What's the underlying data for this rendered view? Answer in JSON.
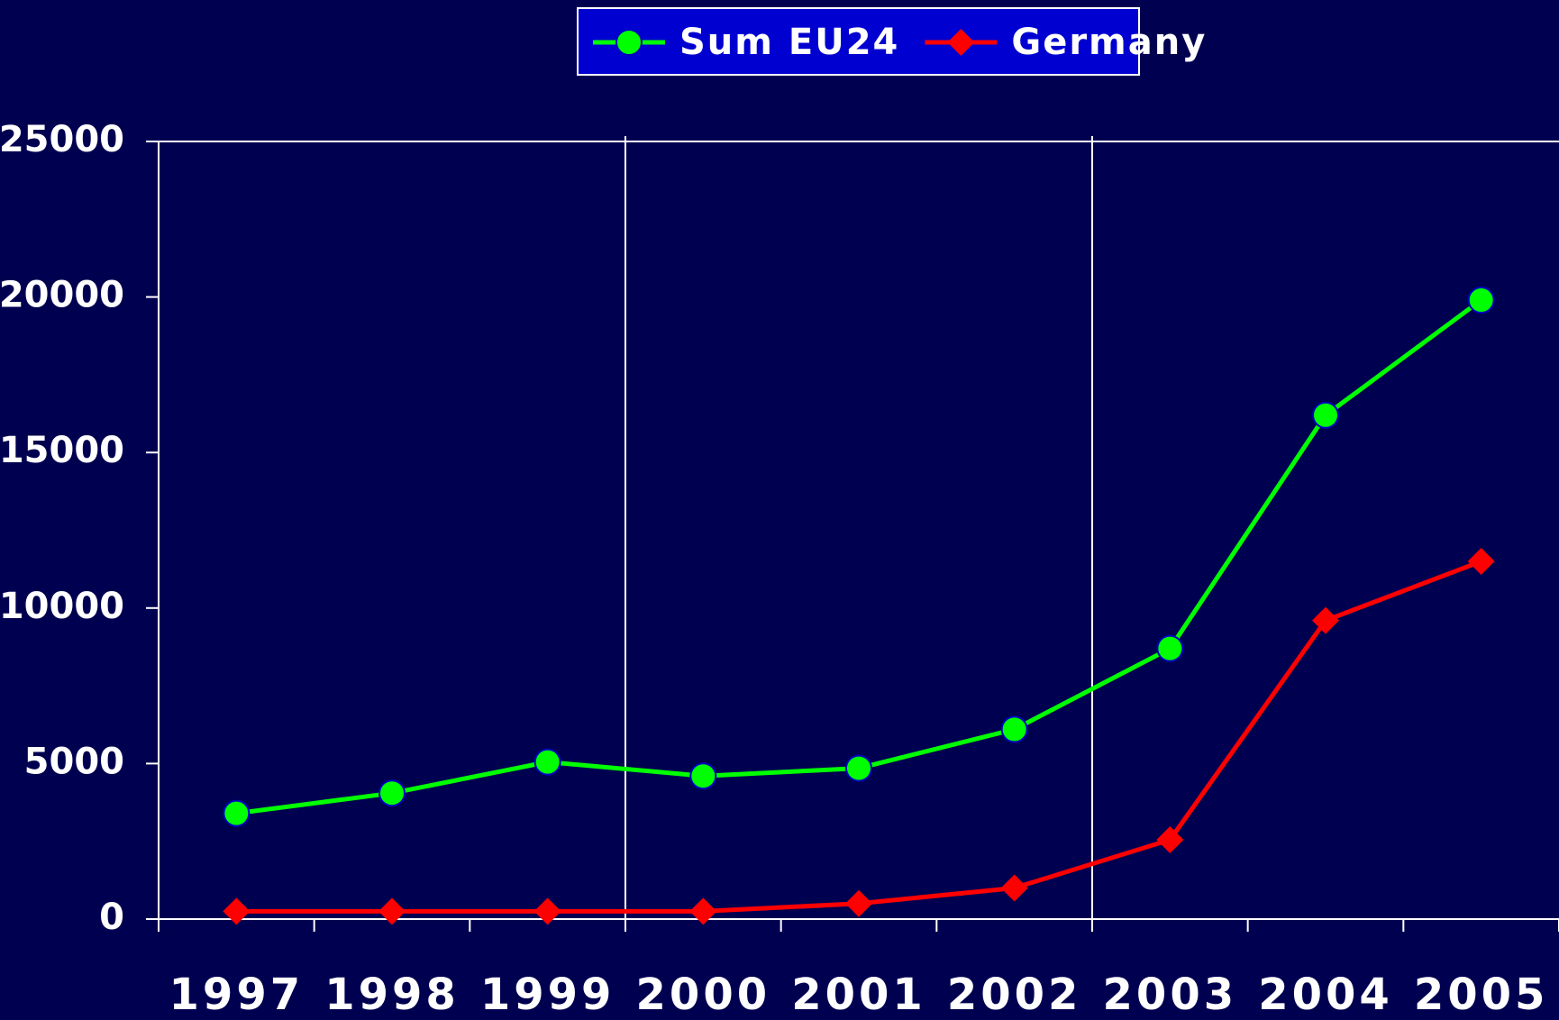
{
  "chart_data": {
    "type": "line",
    "categories": [
      "1997",
      "1998",
      "1999",
      "2000",
      "2001",
      "2002",
      "2003",
      "2004",
      "2005"
    ],
    "series": [
      {
        "name": "Sum EU24",
        "color": "#00ff00",
        "marker": "circle",
        "values": [
          3400,
          4050,
          5050,
          4600,
          4850,
          6100,
          8700,
          16200,
          19900
        ]
      },
      {
        "name": "Germany",
        "color": "#ff0000",
        "marker": "diamond",
        "values": [
          250,
          250,
          250,
          250,
          500,
          1000,
          2550,
          9600,
          11500
        ]
      }
    ],
    "ylim": [
      0,
      25000
    ],
    "yticks": [
      0,
      5000,
      10000,
      15000,
      20000,
      25000
    ],
    "legend": "top",
    "background": "#000050"
  }
}
